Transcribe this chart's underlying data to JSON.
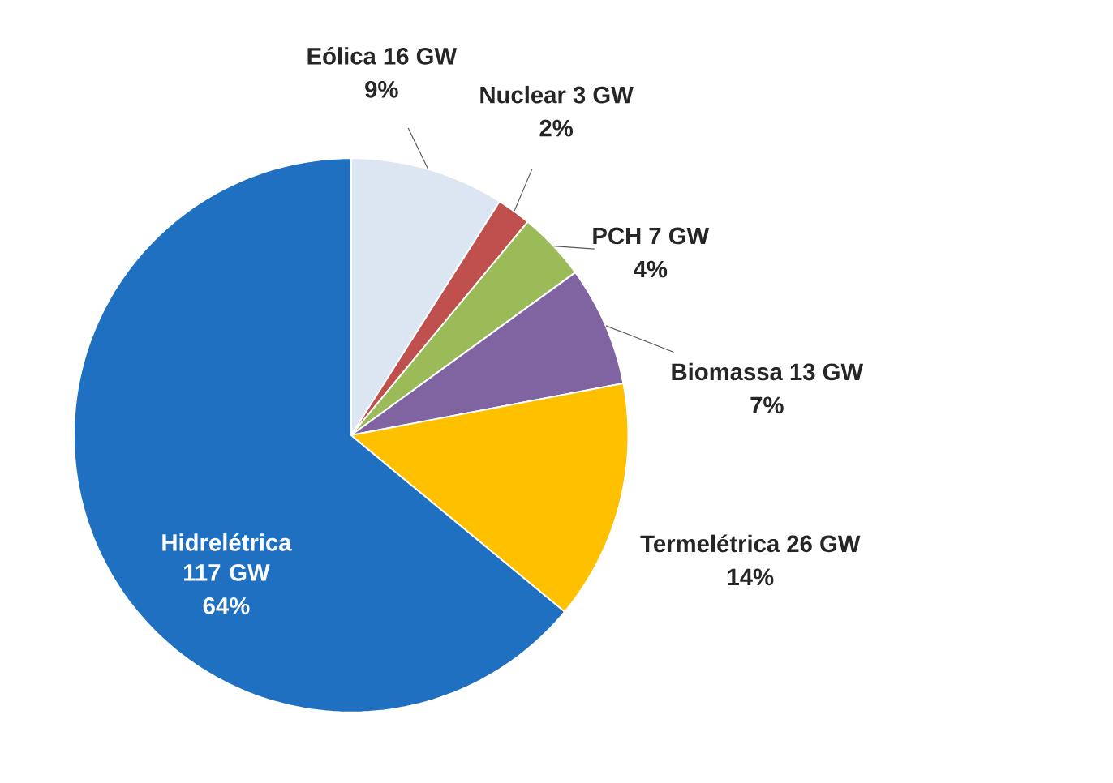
{
  "chart_data": {
    "type": "pie",
    "categories": [
      "Eólica 16 GW",
      "Nuclear 3 GW",
      "PCH 7 GW",
      "Biomassa 13 GW",
      "Termelétrica 26 GW",
      "Hidrelétrica 117 GW"
    ],
    "values": [
      9,
      2,
      4,
      7,
      14,
      64
    ],
    "colors": [
      "#dce6f2",
      "#c0504d",
      "#9bbb59",
      "#8064a2",
      "#ffc000",
      "#1f70c1"
    ],
    "value_labels": [
      "9%",
      "2%",
      "4%",
      "7%",
      "14%",
      "64%"
    ]
  }
}
